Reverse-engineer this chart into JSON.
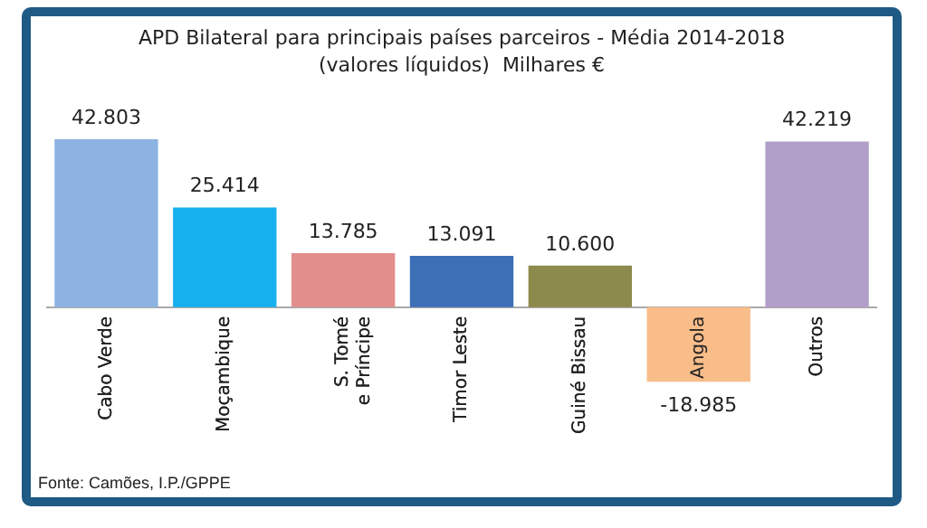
{
  "chart_data": {
    "type": "bar",
    "title": "APD Bilateral para principais países parceiros - Média 2014-2018",
    "subtitle": "(valores líquidos)  Milhares €",
    "categories": [
      "Cabo Verde",
      "Moçambique",
      "S. Tomé e Príncipe",
      "Timor Leste",
      "Guiné Bissau",
      "Angola",
      "Outros"
    ],
    "values": [
      42803,
      25414,
      13785,
      13091,
      10600,
      -18985,
      42219
    ],
    "value_labels": [
      "42.803",
      "25.414",
      "13.785",
      "13.091",
      "10.600",
      "-18.985",
      "42.219"
    ],
    "colors": [
      "#8db3e2",
      "#17b0ee",
      "#e28e8c",
      "#3b6fb6",
      "#8c8a4c",
      "#f9bd8a",
      "#b19fc9"
    ],
    "annotations": [
      "Fonte: Camões, I.P./GPPE"
    ],
    "grid": false,
    "legend": false
  }
}
